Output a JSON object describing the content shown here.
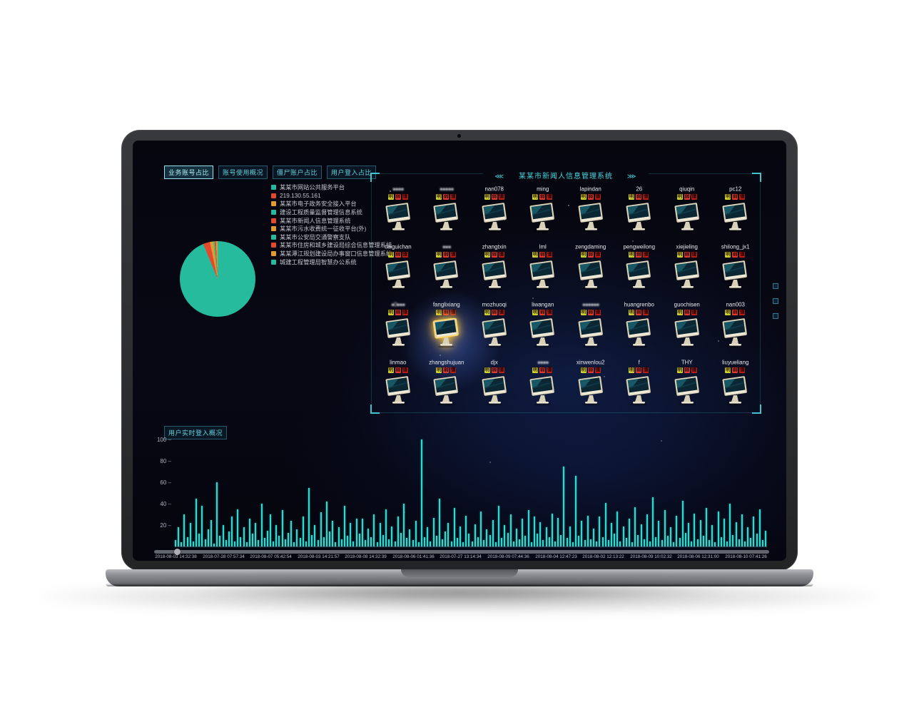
{
  "accent": {
    "cyan": "#3fd8e0",
    "teal": "#27bb9d",
    "red": "#e2492f",
    "orange": "#e29b2d",
    "bar_teal": "#2fd9cf",
    "highlight_yellow": "#ffd75e"
  },
  "tabs": {
    "items": [
      {
        "label": "业务账号占比",
        "active": true
      },
      {
        "label": "账号使用概况",
        "active": false
      },
      {
        "label": "僵尸账户占比",
        "active": false
      },
      {
        "label": "用户登入占比",
        "active": false
      }
    ]
  },
  "legend": {
    "items": [
      {
        "color": "#27bb9d",
        "label": "某某市网站公共服务平台"
      },
      {
        "color": "#e2492f",
        "label": "219.130.55.161"
      },
      {
        "color": "#e29b2d",
        "label": "某某市电子政务安全接入平台"
      },
      {
        "color": "#27bb9d",
        "label": "建设工程质量监督管理信息系统"
      },
      {
        "color": "#e2492f",
        "label": "某某市新闻人信息管理系统"
      },
      {
        "color": "#e29b2d",
        "label": "某某市污水收费统一征收平台(外)"
      },
      {
        "color": "#27bb9d",
        "label": "某某市公安局交通警察支队"
      },
      {
        "color": "#e2492f",
        "label": "某某市住房和城乡建设局综合信息管理系统"
      },
      {
        "color": "#e29b2d",
        "label": "某某潭江规划建设局办事窗口信息管理系统"
      },
      {
        "color": "#27bb9d",
        "label": "城建工程管理局智慧办公系统"
      }
    ]
  },
  "grid": {
    "title": "某某市新闻人信息管理系统",
    "left_arrow": "⋘",
    "right_arrow": "⋙",
    "badge_labels": [
      "明",
      "弱",
      "僵"
    ],
    "badge_colors": [
      "#cfd32b",
      "#e23c2e",
      "#bd2014"
    ],
    "users": [
      {
        "name": "●●●●",
        "masked": true
      },
      {
        "name": "●●●●●",
        "masked": true
      },
      {
        "name": "nan078"
      },
      {
        "name": "ming"
      },
      {
        "name": "lapindan"
      },
      {
        "name": "26"
      },
      {
        "name": "qiuqin"
      },
      {
        "name": "pc12"
      },
      {
        "name": "caiguichan"
      },
      {
        "name": "●●●",
        "masked": true
      },
      {
        "name": "zhangtxin"
      },
      {
        "name": "lml"
      },
      {
        "name": "zengdaming"
      },
      {
        "name": "pengweilong"
      },
      {
        "name": "xiejieling"
      },
      {
        "name": "shilong_jx1"
      },
      {
        "name": "●0●●●",
        "masked": true
      },
      {
        "name": "fanglixiang",
        "highlight": true
      },
      {
        "name": "mozhuoqi"
      },
      {
        "name": "liwangan"
      },
      {
        "name": "●●●●●●",
        "masked": true
      },
      {
        "name": "huangrenbo"
      },
      {
        "name": "guochisen"
      },
      {
        "name": "nan003"
      },
      {
        "name": "linmao"
      },
      {
        "name": "zhangshujuan"
      },
      {
        "name": "djx"
      },
      {
        "name": "●●●●",
        "masked": true
      },
      {
        "name": "xinwenlou2"
      },
      {
        "name": "f"
      },
      {
        "name": "THY"
      },
      {
        "name": "liuyueliang"
      }
    ]
  },
  "login": {
    "title": "用户实时登入概况"
  },
  "chart_data": [
    {
      "type": "pie",
      "title": "业务账号占比",
      "slices": [
        {
          "value": 93.8,
          "color": "#27bb9d"
        },
        {
          "value": 2.9,
          "color": "#e2492f"
        },
        {
          "value": 1.4,
          "color": "#e29b2d"
        },
        {
          "value": 0.6,
          "color": "#2fc98f"
        },
        {
          "value": 0.6,
          "color": "#e2492f"
        },
        {
          "value": 0.7,
          "color": "#e29b2d"
        }
      ]
    },
    {
      "type": "bar",
      "title": "用户实时登入概况",
      "ylim": [
        0,
        100
      ],
      "y_ticks": [
        100,
        80,
        60,
        40,
        20
      ],
      "x_labels": [
        "2018-08-03 14:32:38",
        "2018-07-28 07:57:34",
        "2018-08-07 05:42:54",
        "2018-08-03 14:21:57",
        "2018-08-08 14:32:39",
        "2018-08-06 01:41:36",
        "2018-07-27 13:14:34",
        "2018-08-09 07:44:36",
        "2018-08-04 12:47:23",
        "2018-08-02 12:13:22",
        "2018-08-09 10:02:32",
        "2018-08-06 12:31:00",
        "2018-08-10 07:41:26"
      ],
      "values": [
        6,
        18,
        4,
        30,
        9,
        22,
        5,
        45,
        12,
        38,
        7,
        16,
        25,
        3,
        60,
        10,
        20,
        6,
        14,
        28,
        5,
        35,
        9,
        18,
        4,
        26,
        12,
        22,
        6,
        40,
        8,
        15,
        30,
        5,
        20,
        10,
        34,
        7,
        13,
        24,
        4,
        16,
        8,
        28,
        5,
        55,
        11,
        20,
        6,
        32,
        9,
        42,
        14,
        24,
        4,
        18,
        7,
        38,
        10,
        22,
        5,
        26,
        12,
        26,
        6,
        17,
        9,
        30,
        4,
        22,
        11,
        35,
        7,
        19,
        5,
        28,
        13,
        40,
        8,
        16,
        6,
        24,
        4,
        100,
        9,
        18,
        5,
        27,
        10,
        45,
        7,
        14,
        22,
        5,
        36,
        8,
        19,
        4,
        29,
        12,
        5,
        21,
        9,
        33,
        6,
        16,
        11,
        25,
        4,
        38,
        8,
        20,
        13,
        30,
        5,
        17,
        7,
        26,
        10,
        34,
        4,
        28,
        12,
        23,
        6,
        18,
        9,
        31,
        5,
        27,
        11,
        75,
        8,
        19,
        4,
        66,
        10,
        24,
        6,
        29,
        7,
        17,
        5,
        28,
        9,
        41,
        6,
        22,
        12,
        33,
        5,
        19,
        8,
        26,
        4,
        37,
        11,
        21,
        7,
        30,
        5,
        46,
        9,
        24,
        6,
        34,
        10,
        18,
        4,
        29,
        8,
        43,
        13,
        22,
        5,
        31,
        7,
        25,
        10,
        36,
        6,
        20,
        4,
        33,
        9,
        26,
        5,
        40,
        11,
        23,
        7,
        30,
        5,
        18,
        8,
        28,
        12,
        35,
        6,
        15
      ]
    }
  ]
}
